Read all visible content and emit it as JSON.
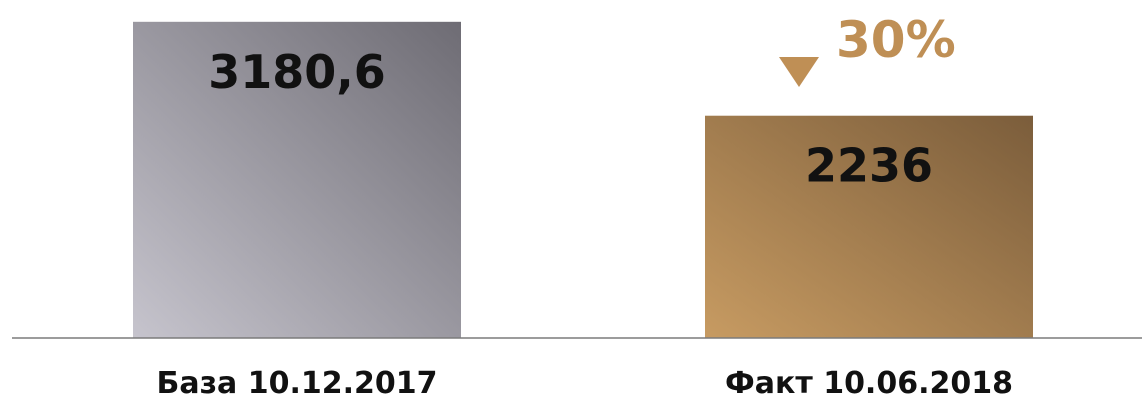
{
  "chart_data": {
    "type": "bar",
    "title": "",
    "xlabel": "",
    "ylabel": "",
    "categories": [
      "База 10.12.2017",
      "Факт 10.06.2018"
    ],
    "values": [
      3180.6,
      2236
    ],
    "value_labels": [
      "3180,6",
      "2236"
    ],
    "ylim": [
      0,
      3400
    ],
    "grid": false,
    "legend": "none",
    "annotation": {
      "text": "30%",
      "direction": "down",
      "arrow_icon": "down-triangle-icon",
      "target_category": "Факт 10.06.2018"
    }
  },
  "colors": {
    "bar_base_start": "#c6c4cd",
    "bar_base_end": "#6e6c74",
    "bar_fact_start": "#c79b62",
    "bar_fact_end": "#7b5d3b",
    "accent": "#bf8f55",
    "axis": "#7b7b7b",
    "text": "#111111"
  }
}
